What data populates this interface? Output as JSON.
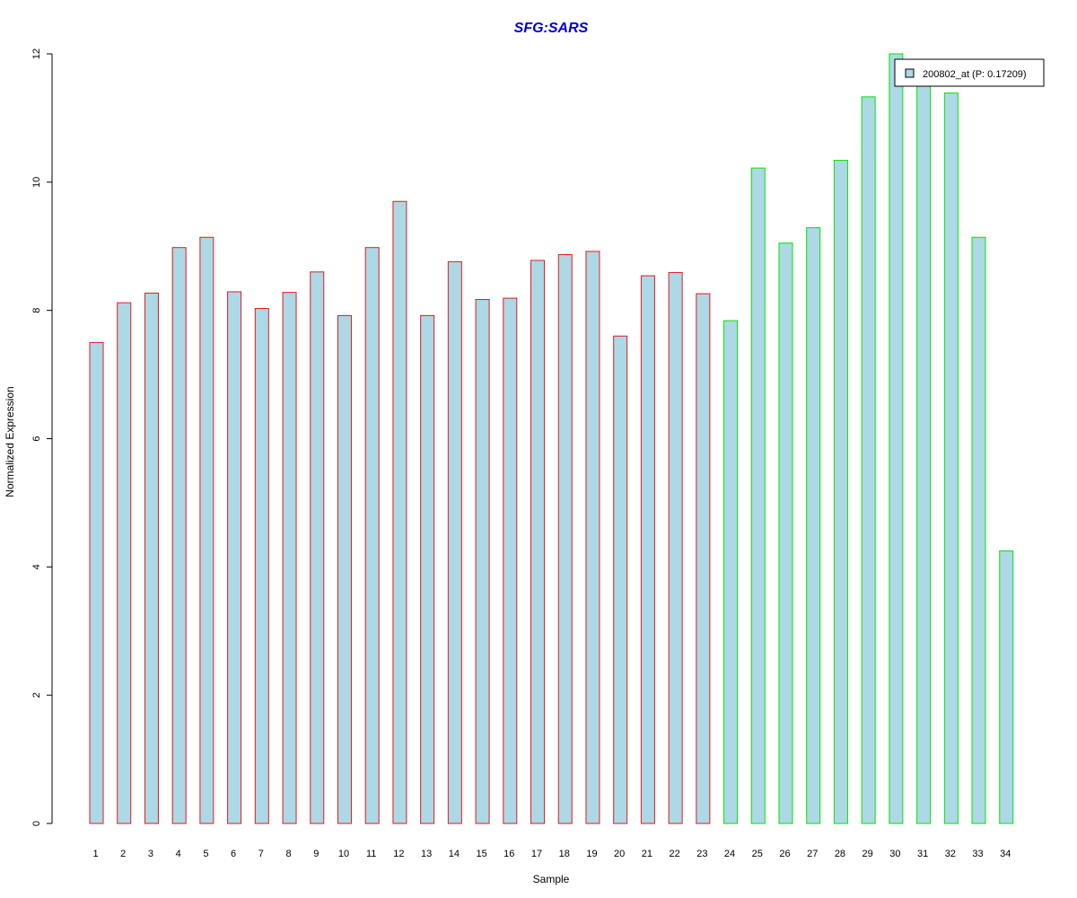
{
  "chart_data": {
    "type": "bar",
    "title": "SFG:SARS",
    "xlabel": "Sample",
    "ylabel": "Normalized Expression",
    "ylim": [
      0,
      12
    ],
    "yticks": [
      0,
      2,
      4,
      6,
      8,
      10,
      12
    ],
    "categories": [
      "1",
      "2",
      "3",
      "4",
      "5",
      "6",
      "7",
      "8",
      "9",
      "10",
      "11",
      "12",
      "13",
      "14",
      "15",
      "16",
      "17",
      "18",
      "19",
      "20",
      "21",
      "22",
      "23",
      "24",
      "25",
      "26",
      "27",
      "28",
      "29",
      "30",
      "31",
      "32",
      "33",
      "34"
    ],
    "values": [
      7.5,
      8.12,
      8.27,
      8.98,
      9.14,
      8.29,
      8.03,
      8.28,
      8.6,
      7.92,
      8.98,
      9.7,
      7.92,
      8.76,
      8.17,
      8.19,
      8.78,
      8.87,
      8.92,
      7.6,
      8.54,
      8.59,
      8.26,
      7.84,
      10.22,
      9.05,
      9.29,
      10.34,
      11.33,
      12.0,
      11.5,
      11.39,
      9.14,
      4.25
    ],
    "groups": [
      "red",
      "red",
      "red",
      "red",
      "red",
      "red",
      "red",
      "red",
      "red",
      "red",
      "red",
      "red",
      "red",
      "red",
      "red",
      "red",
      "red",
      "red",
      "red",
      "red",
      "red",
      "red",
      "red",
      "green",
      "green",
      "green",
      "green",
      "green",
      "green",
      "green",
      "green",
      "green",
      "green",
      "green"
    ],
    "colors": {
      "fill": "#add8e6",
      "red": "#e31a1c",
      "green": "#00e600",
      "title": "#0000cc"
    },
    "legend": {
      "label": "200802_at (P: 0.17209)",
      "position": "top-right"
    }
  }
}
